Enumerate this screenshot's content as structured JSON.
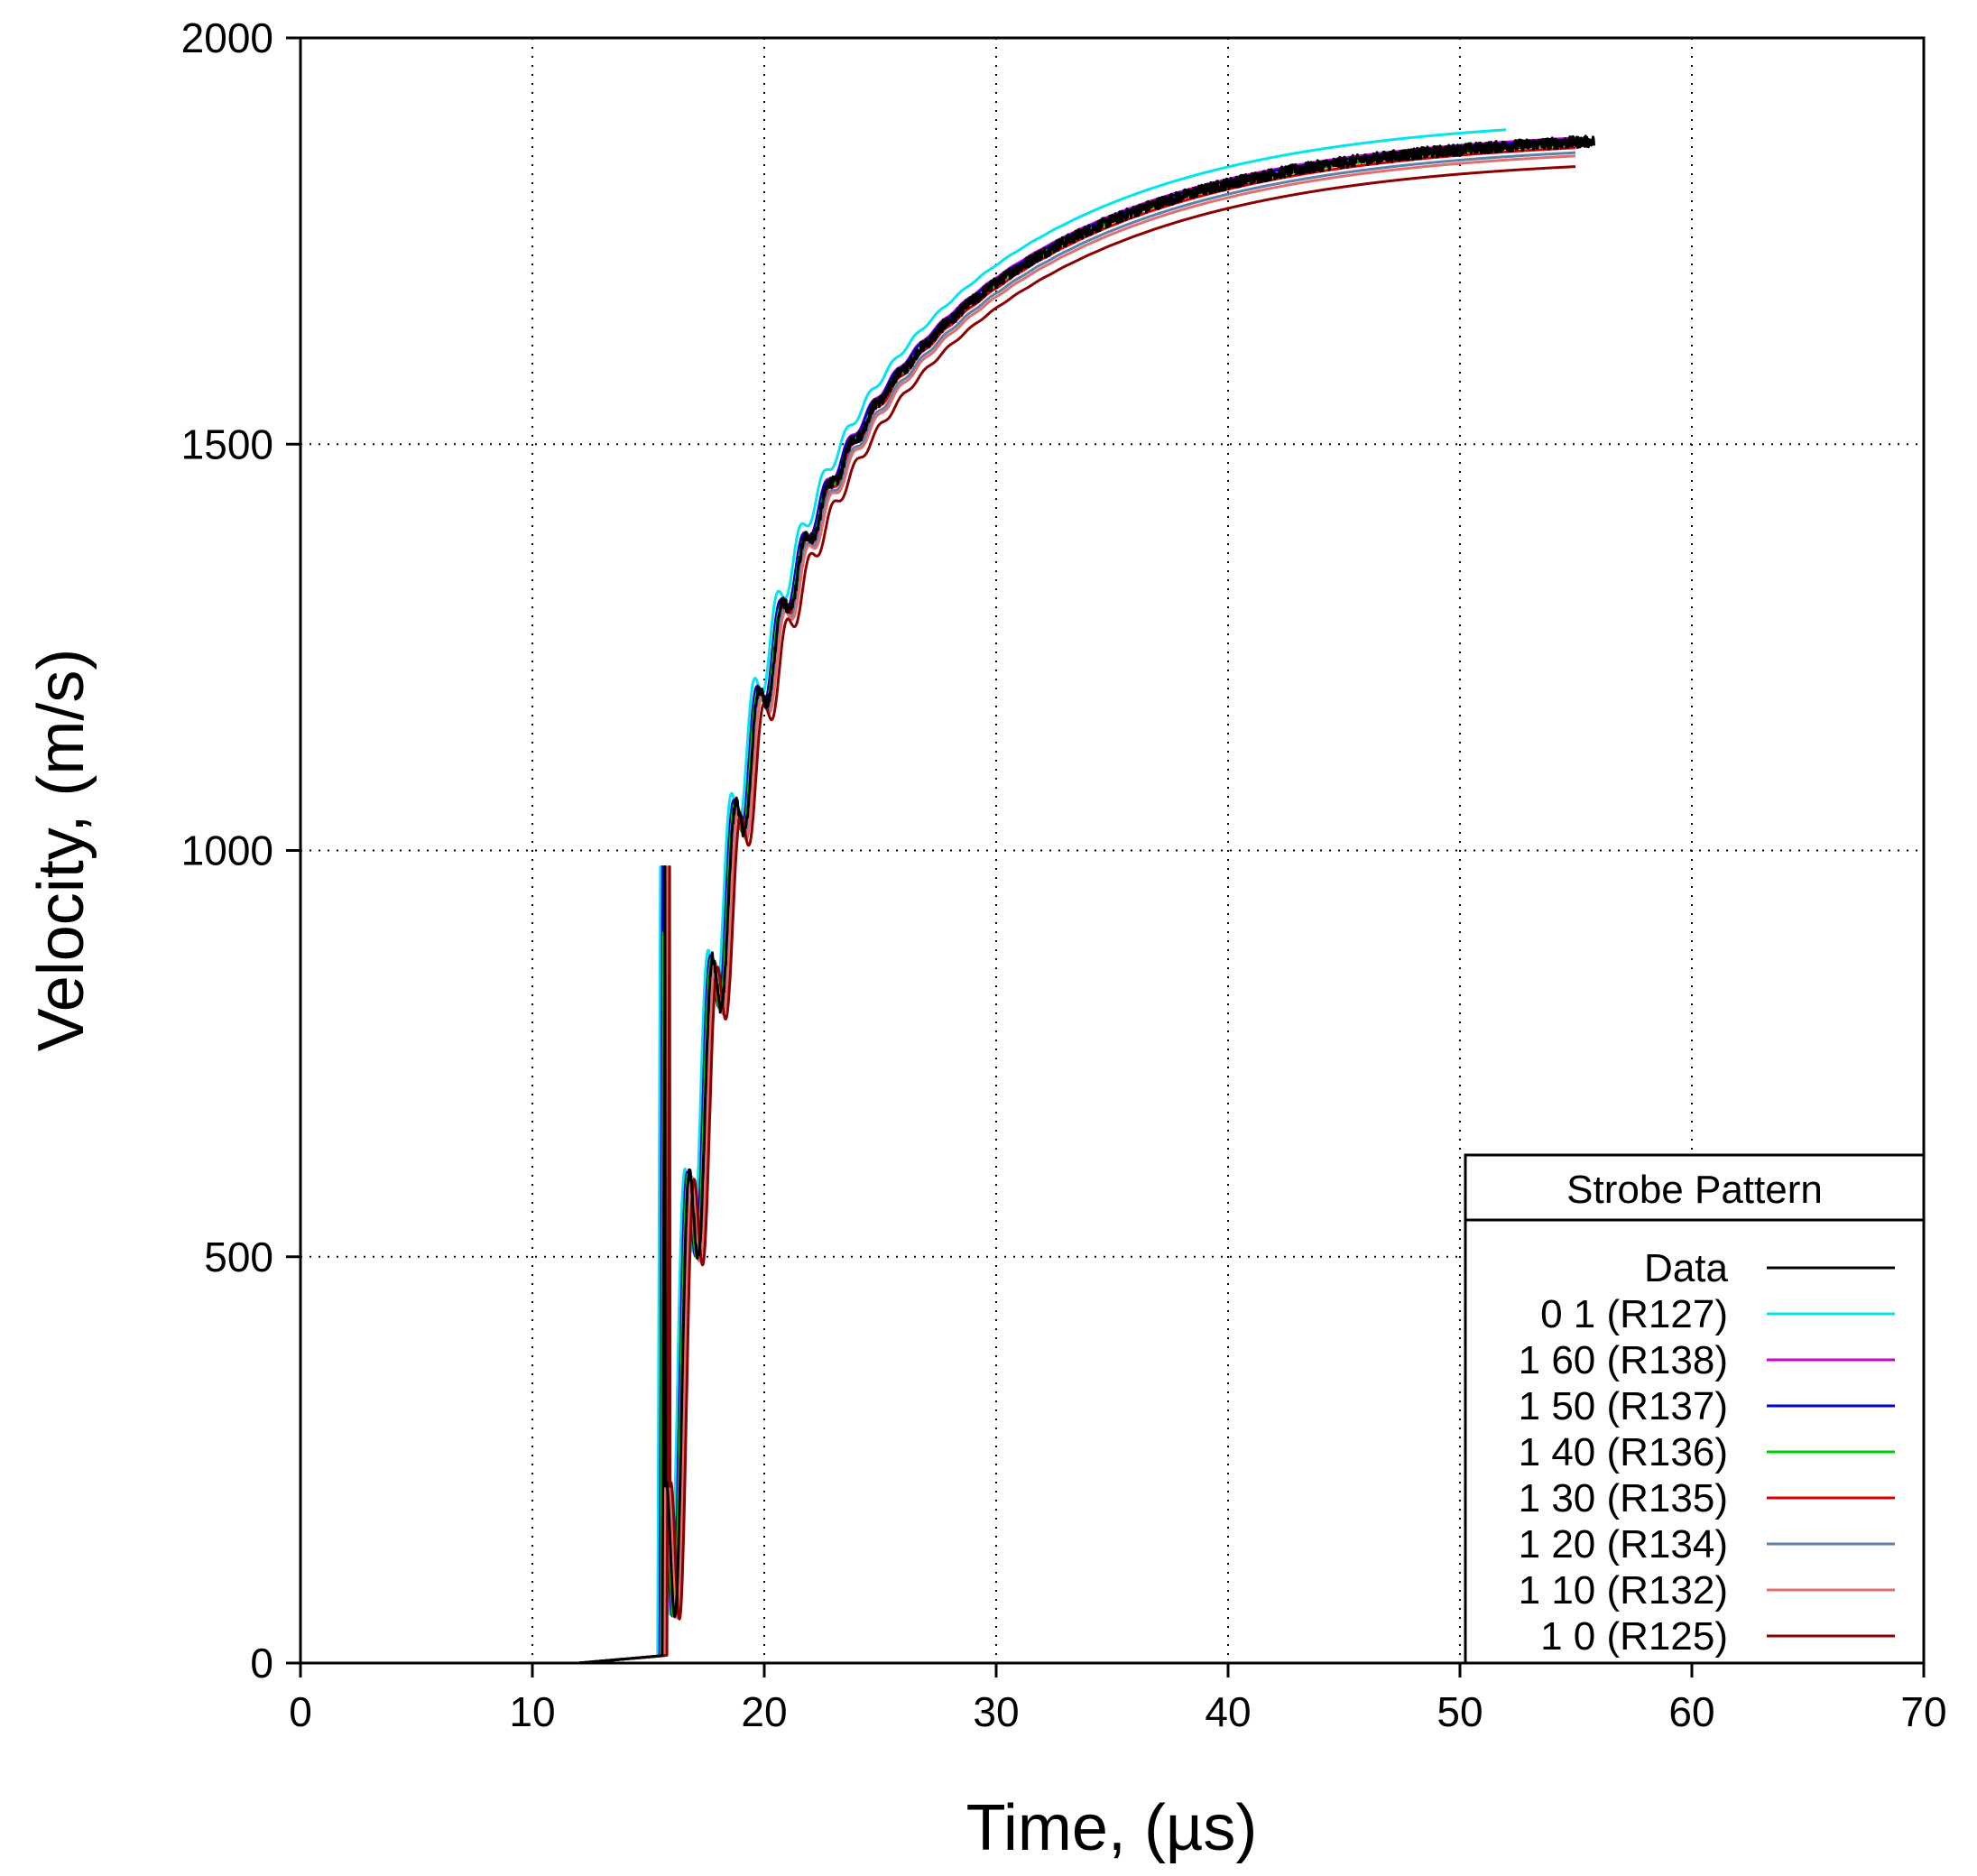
{
  "chart_data": {
    "type": "line",
    "title": "",
    "xlabel": "Time, (µs)",
    "ylabel": "Velocity, (m/s)",
    "xlim": [
      0,
      70
    ],
    "ylim": [
      0,
      2000
    ],
    "xticks": [
      0,
      10,
      20,
      30,
      40,
      50,
      60,
      70
    ],
    "yticks": [
      0,
      500,
      1000,
      1500,
      2000
    ],
    "xtick_labels": [
      "0",
      "10",
      "20",
      "30",
      "40",
      "50",
      "60",
      "70"
    ],
    "ytick_labels": [
      "0",
      "500",
      "1000",
      "1500",
      "2000"
    ],
    "grid": true,
    "legend": {
      "title": "Strobe Pattern",
      "position": "bottom-right"
    },
    "series": [
      {
        "name": "Data",
        "color": "#000000",
        "t0": 15.6,
        "vfinal": 1885,
        "x_start": 12.0,
        "x_end": 55.8,
        "noisy": true
      },
      {
        "name": "0 1 (R127)",
        "color": "#00e5ee",
        "t0": 15.4,
        "vfinal": 1905,
        "x_start": 2.0,
        "x_end": 52.0,
        "noisy": false
      },
      {
        "name": "1 60 (R138)",
        "color": "#cc00cc",
        "t0": 15.5,
        "vfinal": 1890,
        "x_start": 5.0,
        "x_end": 55.0,
        "noisy": false
      },
      {
        "name": "1 50 (R137)",
        "color": "#0000cc",
        "t0": 15.5,
        "vfinal": 1888,
        "x_start": 5.0,
        "x_end": 55.0,
        "noisy": false
      },
      {
        "name": "1 40 (R136)",
        "color": "#00cc00",
        "t0": 15.55,
        "vfinal": 1882,
        "x_start": 5.0,
        "x_end": 55.0,
        "noisy": false
      },
      {
        "name": "1 30 (R135)",
        "color": "#dd0000",
        "t0": 15.6,
        "vfinal": 1878,
        "x_start": 5.0,
        "x_end": 55.0,
        "noisy": false
      },
      {
        "name": "1 20 (R134)",
        "color": "#6080a8",
        "t0": 15.65,
        "vfinal": 1872,
        "x_start": 5.0,
        "x_end": 55.0,
        "noisy": false
      },
      {
        "name": "1 10 (R132)",
        "color": "#e07070",
        "t0": 15.7,
        "vfinal": 1868,
        "x_start": 5.0,
        "x_end": 55.0,
        "noisy": false
      },
      {
        "name": "1 0 (R125)",
        "color": "#8b0000",
        "t0": 15.8,
        "vfinal": 1855,
        "x_start": 5.0,
        "x_end": 55.0,
        "noisy": false
      }
    ]
  }
}
